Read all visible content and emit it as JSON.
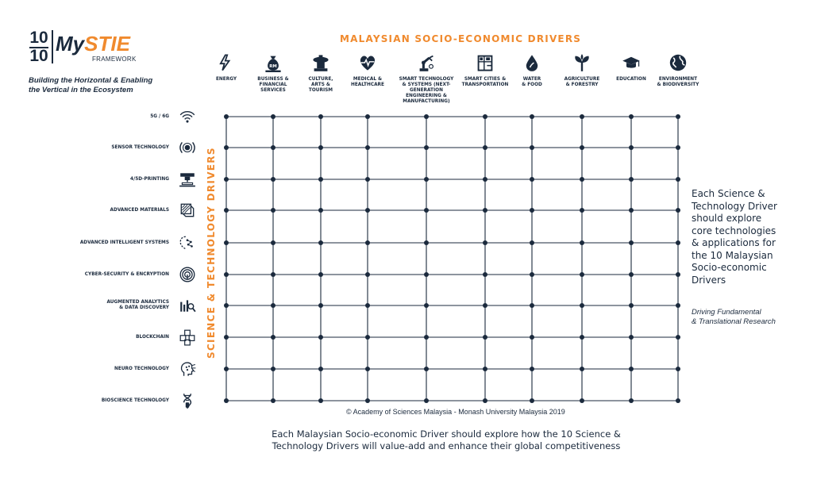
{
  "logo": {
    "top_digits": "10",
    "bottom_digits": "10",
    "name_prefix": "My",
    "name_highlight": "STIE",
    "subtitle": "FRAMEWORK"
  },
  "tagline": {
    "line1": "Building the Horizontal & Enabling",
    "line2": "the Vertical in the Ecosystem"
  },
  "socio_title": "MALAYSIAN SOCIO-ECONOMIC DRIVERS",
  "socio_drivers": [
    {
      "label": "ENERGY",
      "icon": "energy-icon"
    },
    {
      "label": "BUSINESS &\nFINANCIAL\nSERVICES",
      "icon": "money-bag-icon"
    },
    {
      "label": "CULTURE,\nARTS &\nTOURISM",
      "icon": "culture-icon"
    },
    {
      "label": "MEDICAL &\nHEALTHCARE",
      "icon": "heartbeat-icon"
    },
    {
      "label": "SMART TECHNOLOGY\n& SYSTEMS (NEXT-\nGENERATION\nENGINEERING &\nMANUFACTURING)",
      "icon": "robot-arm-icon"
    },
    {
      "label": "SMART CITIES &\nTRANSPORTATION",
      "icon": "city-map-icon"
    },
    {
      "label": "WATER\n& FOOD",
      "icon": "water-drop-icon"
    },
    {
      "label": "AGRICULTURE\n& FORESTRY",
      "icon": "plant-icon"
    },
    {
      "label": "EDUCATION",
      "icon": "graduation-cap-icon"
    },
    {
      "label": "ENVIRONMENT\n& BIODIVERSITY",
      "icon": "globe-icon"
    }
  ],
  "st_title": "SCIENCE & TECHNOLOGY DRIVERS",
  "st_drivers": [
    {
      "label": "5G / 6G",
      "icon": "wifi-icon"
    },
    {
      "label": "SENSOR TECHNOLOGY",
      "icon": "sensor-icon"
    },
    {
      "label": "4/5D-PRINTING",
      "icon": "printer-icon"
    },
    {
      "label": "ADVANCED MATERIALS",
      "icon": "materials-icon"
    },
    {
      "label": "ADVANCED INTELLIGENT SYSTEMS",
      "icon": "ai-icon"
    },
    {
      "label": "CYBER-SECURITY & ENCRYPTION",
      "icon": "fingerprint-icon"
    },
    {
      "label": "AUGMENTED ANALYTICS\n& DATA DISCOVERY",
      "icon": "analytics-icon"
    },
    {
      "label": "BLOCKCHAIN",
      "icon": "blockchain-icon"
    },
    {
      "label": "NEURO TECHNOLOGY",
      "icon": "brain-head-icon"
    },
    {
      "label": "BIOSCIENCE TECHNOLOGY",
      "icon": "dna-icon"
    }
  ],
  "side_note": "Each Science &\nTechnology Driver\nshould explore\ncore technologies\n& applications for\nthe 10 Malaysian\nSocio-economic\nDrivers",
  "side_sub": "Driving Fundamental\n& Translational Research",
  "copyright": "© Academy of Sciences Malaysia - Monash University Malaysia 2019",
  "bottom_note": "Each Malaysian Socio-economic Driver should explore how the 10 Science &\nTechnology Drivers will value-add and enhance their global competitiveness",
  "colors": {
    "accent": "#f08a2e",
    "navy": "#1b2a3d"
  }
}
